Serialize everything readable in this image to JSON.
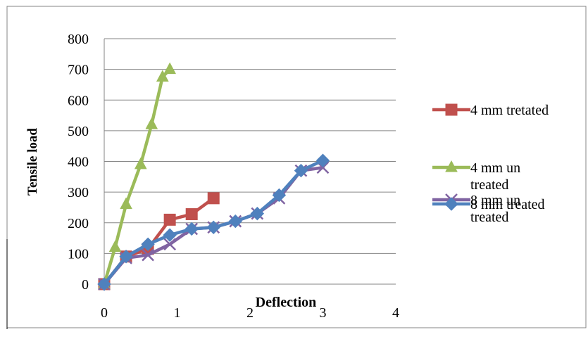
{
  "chart_data": {
    "type": "line",
    "title": "",
    "xlabel": "Deflection",
    "ylabel": "Tensile load",
    "xlim": [
      0,
      4
    ],
    "ylim": [
      0,
      800
    ],
    "x_ticks": [
      "0",
      "1",
      "2",
      "3",
      "4"
    ],
    "y_ticks": [
      "0",
      "100",
      "200",
      "300",
      "400",
      "500",
      "600",
      "700",
      "800"
    ],
    "grid": "horizontal",
    "legend_position": "right",
    "series": [
      {
        "name": "4 mm tretated",
        "legend_lines": [
          "4 mm tretated"
        ],
        "color": "#C0504D",
        "marker": "square",
        "x": [
          0,
          0.3,
          0.6,
          0.9,
          1.2,
          1.5
        ],
        "y": [
          0,
          90,
          115,
          210,
          228,
          280
        ]
      },
      {
        "name": "4 mm un treated",
        "legend_lines": [
          "4 mm un",
          "treated"
        ],
        "color": "#9BBB59",
        "marker": "triangle",
        "x": [
          0,
          0.15,
          0.3,
          0.5,
          0.65,
          0.8,
          0.9
        ],
        "y": [
          0,
          120,
          260,
          390,
          520,
          675,
          700
        ]
      },
      {
        "name": "8 mm un treated",
        "legend_lines": [
          "8 mm un",
          "treated"
        ],
        "color": "#8064A2",
        "marker": "x",
        "x": [
          0,
          0.3,
          0.6,
          0.9,
          1.2,
          1.5,
          1.8,
          2.1,
          2.4,
          2.7,
          3.0
        ],
        "y": [
          0,
          85,
          95,
          130,
          180,
          185,
          205,
          230,
          280,
          370,
          380
        ]
      },
      {
        "name": "8 mm treated",
        "legend_lines": [
          "8 mm treated"
        ],
        "color": "#4F81BD",
        "marker": "diamond",
        "x": [
          0,
          0.3,
          0.6,
          0.9,
          1.2,
          1.5,
          1.8,
          2.1,
          2.4,
          2.7,
          3.0
        ],
        "y": [
          0,
          90,
          130,
          160,
          180,
          185,
          205,
          230,
          290,
          370,
          403
        ]
      }
    ]
  }
}
